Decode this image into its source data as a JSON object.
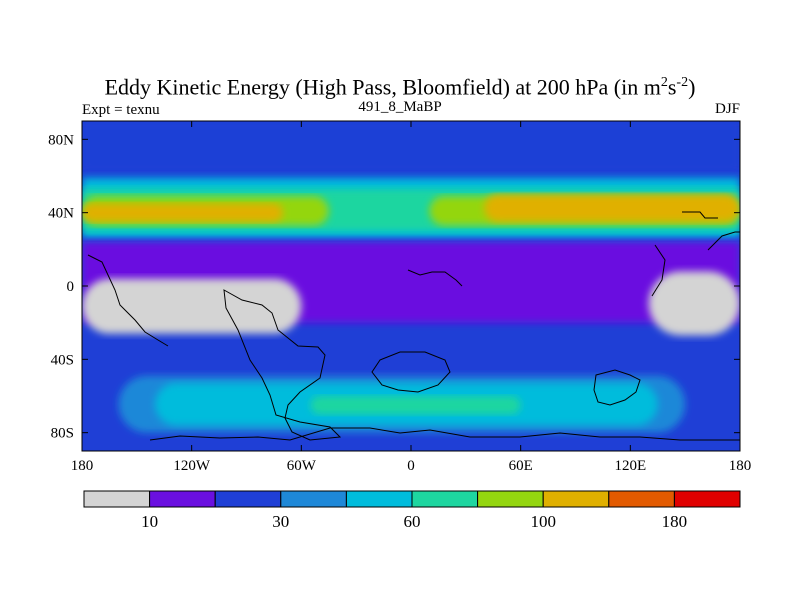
{
  "header": {
    "title_main": "Eddy Kinetic Energy (High Pass, Bloomfield) at 200 hPa (in m",
    "title_sup1": "2",
    "title_s": "s",
    "title_sup2": "-2",
    "title_close": ")",
    "subtitle": "491_8_MaBP",
    "left_label": "Expt = texnu",
    "right_label": "DJF"
  },
  "chart_data": {
    "type": "heatmap",
    "title": "Eddy Kinetic Energy (High Pass, Bloomfield) at 200 hPa (in m2s-2)",
    "subtitle": "491_8_MaBP",
    "variable": "Eddy Kinetic Energy",
    "units": "m2s-2",
    "season": "DJF",
    "experiment": "texnu",
    "xlim": [
      -180,
      180
    ],
    "ylim": [
      -90,
      90
    ],
    "x_ticks": [
      {
        "value": -180,
        "label": "180"
      },
      {
        "value": -120,
        "label": "120W"
      },
      {
        "value": -60,
        "label": "60W"
      },
      {
        "value": 0,
        "label": "0"
      },
      {
        "value": 60,
        "label": "60E"
      },
      {
        "value": 120,
        "label": "120E"
      },
      {
        "value": 180,
        "label": "180"
      }
    ],
    "y_ticks": [
      {
        "value": 80,
        "label": "80N"
      },
      {
        "value": 40,
        "label": "40N"
      },
      {
        "value": 0,
        "label": "0"
      },
      {
        "value": -40,
        "label": "40S"
      },
      {
        "value": -80,
        "label": "80S"
      }
    ],
    "colorbar": {
      "colors": [
        "#d4d4d4",
        "#6a10e0",
        "#1f3fd6",
        "#1e88d8",
        "#00bcdc",
        "#1ed6a0",
        "#94d610",
        "#e0b000",
        "#e25a00",
        "#e00000"
      ],
      "labels": [
        {
          "boundary": 1,
          "text": "10"
        },
        {
          "boundary": 3,
          "text": "30"
        },
        {
          "boundary": 5,
          "text": "60"
        },
        {
          "boundary": 7,
          "text": "100"
        },
        {
          "boundary": 9,
          "text": "180"
        }
      ]
    },
    "regions": [
      {
        "name": "background",
        "level": 2,
        "lon": [
          -180,
          180
        ],
        "lat": [
          -90,
          90
        ]
      },
      {
        "name": "arctic",
        "level": 2,
        "lon": [
          -180,
          180
        ],
        "lat": [
          62,
          90
        ]
      },
      {
        "name": "nh-midlat-outer",
        "level": 4,
        "lon": [
          -180,
          180
        ],
        "lat": [
          26,
          59
        ]
      },
      {
        "name": "nh-midlat-mid",
        "level": 5,
        "lon": [
          -180,
          180
        ],
        "lat": [
          30,
          53
        ]
      },
      {
        "name": "nh-jet-pacific",
        "level": 6,
        "lon": [
          -180,
          -45
        ],
        "lat": [
          33,
          49
        ]
      },
      {
        "name": "nh-jet-atlantic",
        "level": 6,
        "lon": [
          10,
          180
        ],
        "lat": [
          33,
          49
        ]
      },
      {
        "name": "pacific-storm-track",
        "level": 7,
        "lon": [
          -180,
          -70
        ],
        "lat": [
          35,
          45
        ]
      },
      {
        "name": "atlantic-storm-track",
        "level": 7,
        "lon": [
          40,
          180
        ],
        "lat": [
          35,
          50
        ]
      },
      {
        "name": "tropics",
        "level": 1,
        "lon": [
          -180,
          180
        ],
        "lat": [
          -20,
          24
        ]
      },
      {
        "name": "low-ekE-west",
        "level": 0,
        "lon": [
          -180,
          -60
        ],
        "lat": [
          -26,
          4
        ]
      },
      {
        "name": "low-ekE-east",
        "level": 0,
        "lon": [
          130,
          180
        ],
        "lat": [
          -27,
          8
        ]
      },
      {
        "name": "sh-storm-track-outer",
        "level": 3,
        "lon": [
          -160,
          150
        ],
        "lat": [
          -80,
          -49
        ]
      },
      {
        "name": "sh-storm-track",
        "level": 4,
        "lon": [
          -140,
          135
        ],
        "lat": [
          -76,
          -53
        ]
      },
      {
        "name": "sh-storm-track-core",
        "level": 5,
        "lon": [
          -55,
          60
        ],
        "lat": [
          -70,
          -60
        ]
      }
    ]
  }
}
